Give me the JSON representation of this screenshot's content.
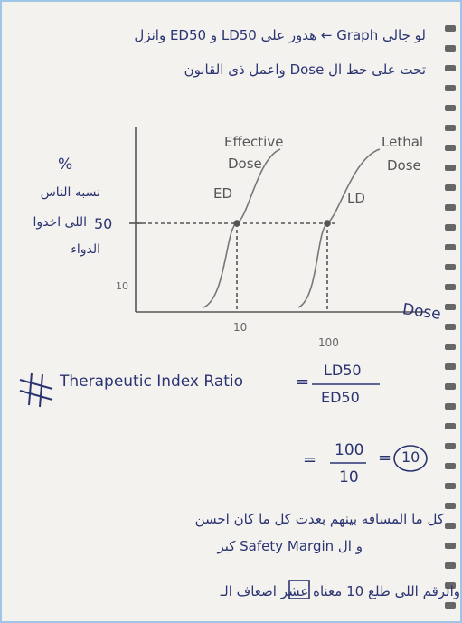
{
  "header": {
    "line1": "لو جالى Graph ← هدور على LD50 و ED50 وانزل",
    "line2": "تحت على خط ال Dose واعمل ذى القانون"
  },
  "graph": {
    "y_axis": {
      "symbol": "%",
      "label_line1": "نسبه الناس",
      "label_line2": "اللى اخدوا",
      "label_line3": "الدواء",
      "tick_50": "50",
      "tick_10": "10"
    },
    "x_axis": {
      "tick_10": "10",
      "tick_100": "100",
      "label": "Dose"
    },
    "curves": [
      {
        "title": "Effective",
        "subtitle": "Dose",
        "tag": "ED"
      },
      {
        "title": "Lethal",
        "subtitle": "Dose",
        "tag": "LD"
      }
    ]
  },
  "formula": {
    "name": "Therapeutic Index Ratio",
    "equals": "=",
    "numerator": "LD50",
    "denominator": "ED50",
    "step_numerator": "100",
    "step_denominator": "10",
    "result": "10"
  },
  "notes": {
    "line1": "كل ما المسافه بينهم بعدت كل ما كان احسن",
    "line2": "و ال Safety Margin كبر",
    "line3": "والرقم اللى طلع 10 معناه عشر اضعاف الـ"
  }
}
